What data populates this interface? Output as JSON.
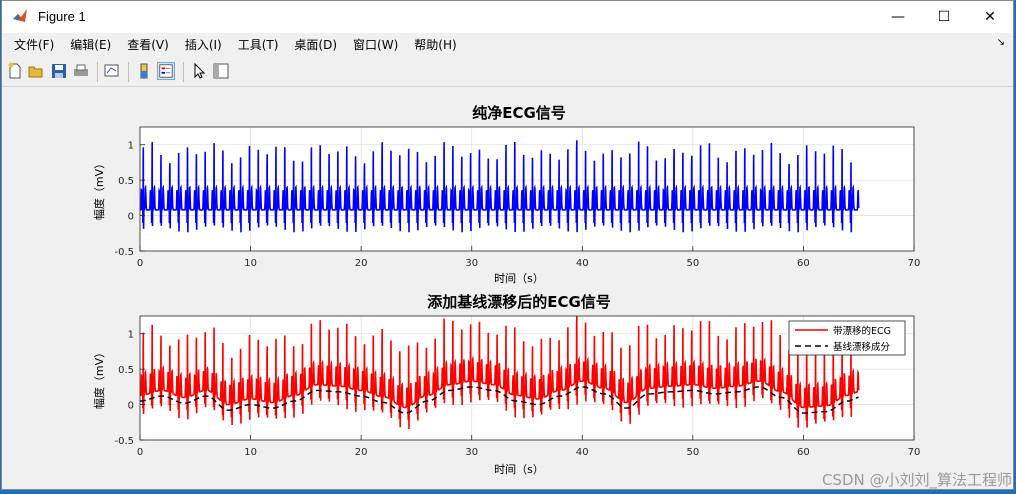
{
  "window": {
    "title": "Figure 1",
    "minimize": "—",
    "maximize": "☐",
    "close": "✕"
  },
  "menu": [
    "文件(F)",
    "编辑(E)",
    "查看(V)",
    "插入(I)",
    "工具(T)",
    "桌面(D)",
    "窗口(W)",
    "帮助(H)"
  ],
  "toolbar": {
    "icons": [
      "new-figure-icon",
      "open-icon",
      "save-icon",
      "print-icon",
      "link-plot-icon",
      "insert-colorbar-icon",
      "insert-legend-icon",
      "pointer-icon",
      "property-inspector-icon"
    ]
  },
  "watermark": "CSDN @小刘刘_算法工程师",
  "colors": {
    "clean": "#0000ff",
    "noisy": "#ff0000",
    "baseline": "#000000"
  },
  "chart_data": [
    {
      "type": "line",
      "title": "纯净ECG信号",
      "xlabel": "时间（s）",
      "ylabel": "幅度（mV）",
      "xlim": [
        0,
        70
      ],
      "ylim": [
        -0.5,
        1.25
      ],
      "xticks": [
        "0",
        "10",
        "20",
        "30",
        "40",
        "50",
        "60",
        "70"
      ],
      "yticks": [
        "-0.5",
        "0",
        "0.5",
        "1"
      ],
      "grid": true,
      "x_range": [
        0,
        65
      ],
      "beat_period_s": 0.8,
      "r_peak_mV": 1.05,
      "baseline_mV": 0.08,
      "trough_mV": -0.2,
      "series": [
        {
          "style": "solid",
          "color": "#0000ff"
        }
      ]
    },
    {
      "type": "line",
      "title": "添加基线漂移后的ECG信号",
      "xlabel": "时间（s）",
      "ylabel": "幅度（mV）",
      "xlim": [
        0,
        70
      ],
      "ylim": [
        -0.5,
        1.25
      ],
      "xticks": [
        "0",
        "10",
        "20",
        "30",
        "40",
        "50",
        "60",
        "70"
      ],
      "yticks": [
        "-0.5",
        "0",
        "0.5",
        "1"
      ],
      "grid": true,
      "legend": "top-right",
      "series": [
        {
          "name": "带漂移的ECG",
          "style": "solid",
          "color": "#ff0000"
        },
        {
          "name": "基线漂移成分",
          "style": "dashed",
          "color": "#000000"
        }
      ],
      "baseline_drift": {
        "x": [
          0,
          2,
          4,
          6,
          8,
          10,
          12,
          14,
          16,
          18,
          20,
          22,
          24,
          26,
          28,
          30,
          32,
          34,
          36,
          38,
          40,
          42,
          44,
          46,
          48,
          50,
          52,
          54,
          56,
          58,
          60,
          62,
          64,
          65
        ],
        "y": [
          0.05,
          0.12,
          0.02,
          0.12,
          -0.08,
          0.0,
          -0.05,
          0.05,
          0.2,
          0.18,
          0.12,
          0.03,
          -0.12,
          0.05,
          0.2,
          0.25,
          0.2,
          0.05,
          0.0,
          0.12,
          0.25,
          0.15,
          -0.05,
          0.15,
          0.18,
          0.2,
          0.15,
          0.18,
          0.25,
          0.1,
          -0.12,
          -0.1,
          0.05,
          0.1
        ]
      }
    }
  ]
}
